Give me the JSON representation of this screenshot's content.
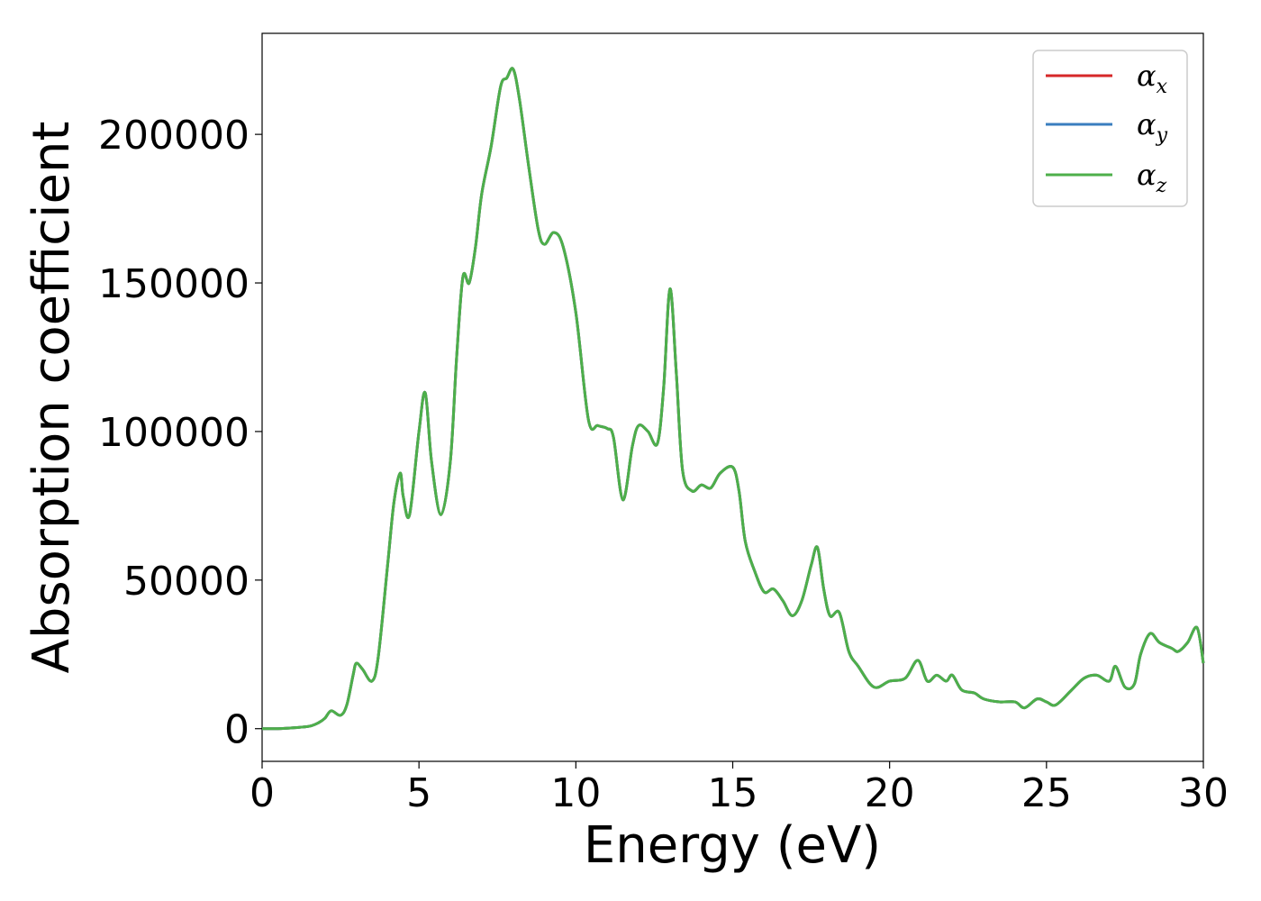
{
  "chart_data": {
    "type": "line",
    "title": "",
    "xlabel": "Energy (eV)",
    "ylabel": "Absorption coefficient",
    "xlim": [
      0,
      30
    ],
    "ylim": [
      -11000,
      234000
    ],
    "xticks": [
      0,
      5,
      10,
      15,
      20,
      25,
      30
    ],
    "xtick_labels": [
      "0",
      "5",
      "10",
      "15",
      "20",
      "25",
      "30"
    ],
    "yticks": [
      0,
      50000,
      100000,
      150000,
      200000
    ],
    "ytick_labels": [
      "0",
      "50000",
      "100000",
      "150000",
      "200000"
    ],
    "grid": false,
    "legend_position": "top-right",
    "series": [
      {
        "name": "α",
        "subscript": "x",
        "color": "#d62728"
      },
      {
        "name": "α",
        "subscript": "y",
        "color": "#3a7ebf"
      },
      {
        "name": "α",
        "subscript": "z",
        "color": "#4daf4a"
      }
    ],
    "x": [
      0,
      0.5,
      1.0,
      1.5,
      1.8,
      2.0,
      2.2,
      2.5,
      2.7,
      2.9,
      3.0,
      3.2,
      3.5,
      3.7,
      4.0,
      4.2,
      4.4,
      4.5,
      4.7,
      5.0,
      5.2,
      5.4,
      5.7,
      6.0,
      6.2,
      6.4,
      6.6,
      6.8,
      7.0,
      7.3,
      7.6,
      7.8,
      8.0,
      8.2,
      8.5,
      8.8,
      9.0,
      9.3,
      9.6,
      10.0,
      10.4,
      10.7,
      11.0,
      11.2,
      11.5,
      11.8,
      12.0,
      12.3,
      12.6,
      12.8,
      13.0,
      13.2,
      13.4,
      13.7,
      14.0,
      14.3,
      14.6,
      15.0,
      15.2,
      15.4,
      15.7,
      16.0,
      16.3,
      16.6,
      16.9,
      17.2,
      17.5,
      17.7,
      17.9,
      18.1,
      18.4,
      18.7,
      19.0,
      19.5,
      20.0,
      20.5,
      20.9,
      21.2,
      21.5,
      21.8,
      22.0,
      22.3,
      22.7,
      23.0,
      23.5,
      24.0,
      24.3,
      24.7,
      25.0,
      25.3,
      25.8,
      26.2,
      26.6,
      27.0,
      27.2,
      27.5,
      27.8,
      28.0,
      28.3,
      28.6,
      29.0,
      29.2,
      29.5,
      29.8,
      30.0
    ],
    "values": [
      0,
      0,
      300,
      800,
      2000,
      3500,
      6000,
      4500,
      8000,
      18000,
      22000,
      20000,
      16000,
      24000,
      55000,
      76000,
      86000,
      78000,
      72000,
      100000,
      113000,
      90000,
      72000,
      90000,
      125000,
      152000,
      150000,
      162000,
      180000,
      196000,
      216000,
      219000,
      222000,
      212000,
      189000,
      168000,
      163000,
      167000,
      162000,
      140000,
      104000,
      102000,
      101000,
      98000,
      77000,
      95000,
      102000,
      100000,
      96000,
      115000,
      148000,
      120000,
      87000,
      80000,
      82000,
      81000,
      86000,
      88000,
      80000,
      63000,
      53000,
      46000,
      47000,
      43000,
      38000,
      43000,
      55000,
      61000,
      47000,
      38000,
      39000,
      26000,
      21000,
      14000,
      16000,
      17000,
      23000,
      16000,
      18000,
      16000,
      18000,
      13000,
      12000,
      10000,
      9000,
      9000,
      7000,
      10000,
      9000,
      8000,
      13000,
      17000,
      18000,
      16000,
      21000,
      14000,
      15000,
      25000,
      32000,
      29000,
      27000,
      26000,
      29000,
      34000,
      22000
    ]
  }
}
